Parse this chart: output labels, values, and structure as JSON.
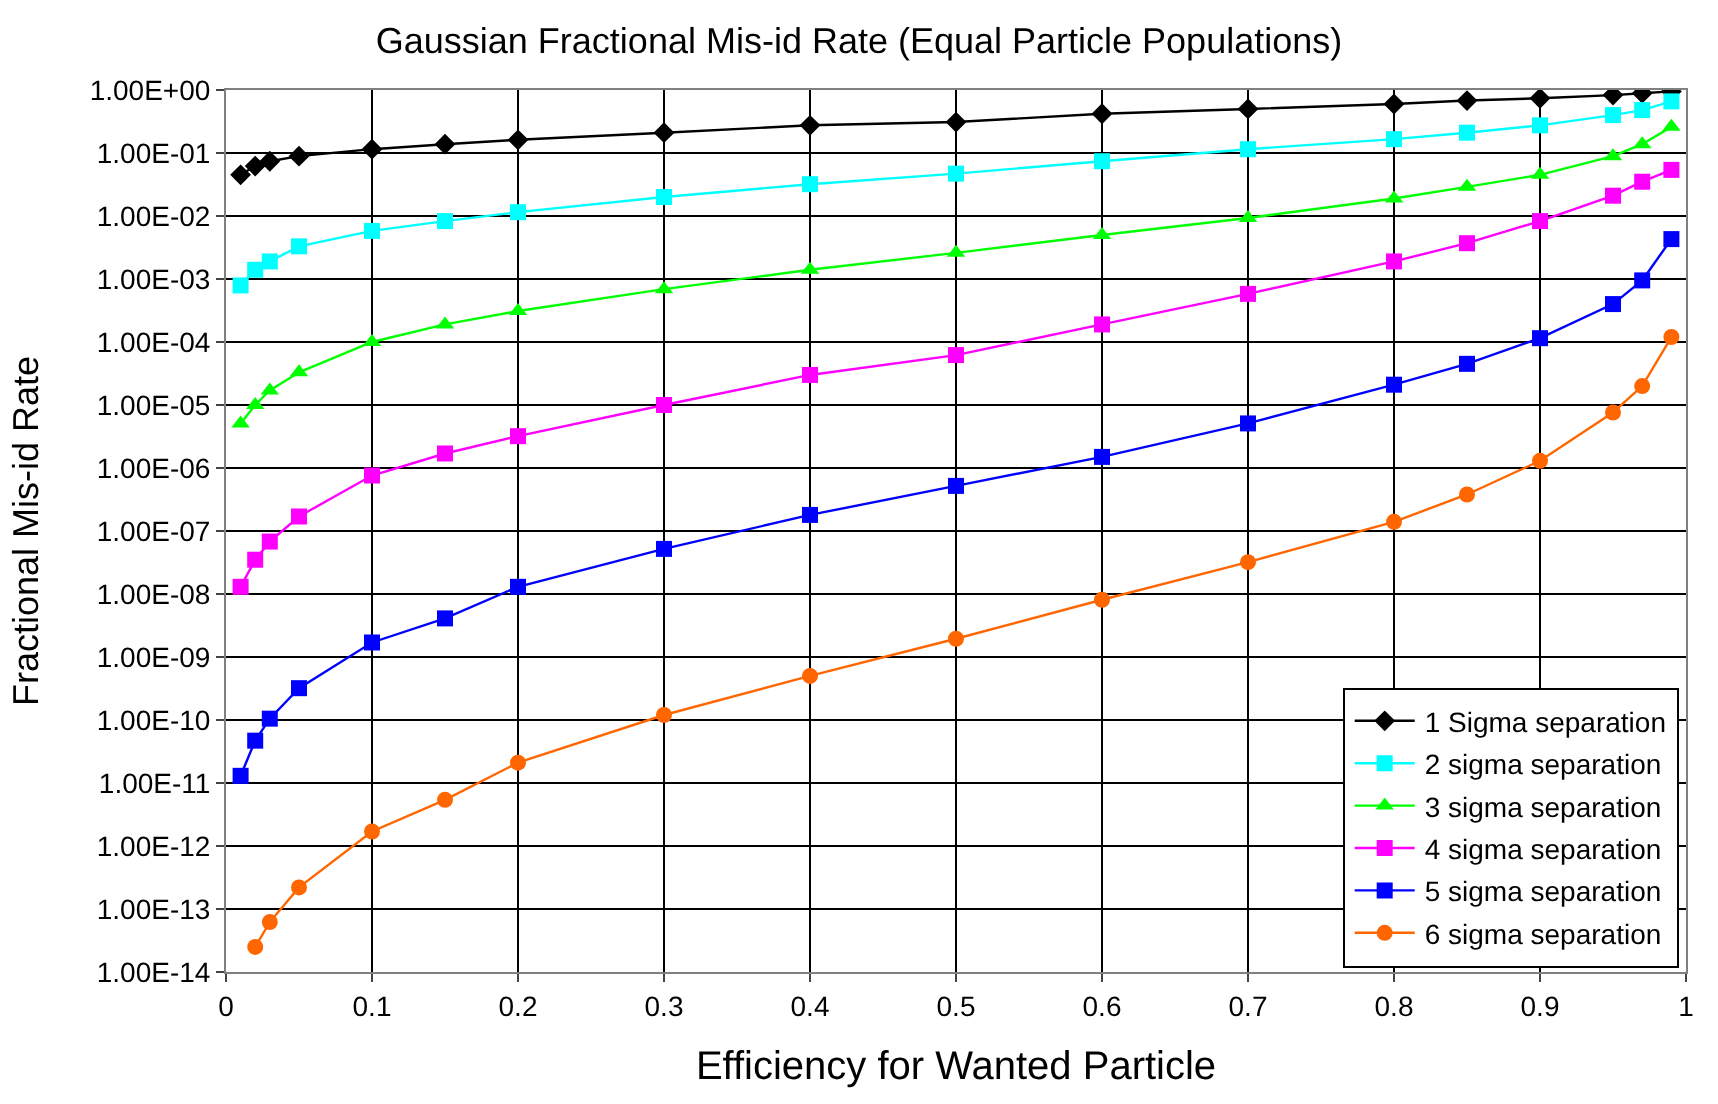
{
  "chart_data": {
    "type": "line",
    "title": "Gaussian Fractional Mis-id Rate (Equal Particle Populations)",
    "xlabel": "Efficiency for Wanted Particle",
    "ylabel": "Fractional Mis-id Rate",
    "x": [
      0.01,
      0.02,
      0.03,
      0.05,
      0.1,
      0.15,
      0.2,
      0.3,
      0.4,
      0.5,
      0.6,
      0.7,
      0.8,
      0.85,
      0.9,
      0.95,
      0.97,
      0.99
    ],
    "series": [
      {
        "name": "1 Sigma separation",
        "color": "#000000",
        "marker": "diamond",
        "values": [
          0.045,
          0.062,
          0.074,
          0.089,
          0.115,
          0.138,
          0.162,
          0.21,
          0.275,
          0.31,
          0.42,
          0.5,
          0.6,
          0.68,
          0.74,
          0.83,
          0.89,
          0.95
        ]
      },
      {
        "name": "2 sigma separation",
        "color": "#00ffff",
        "marker": "square",
        "values": [
          0.00079,
          0.0014,
          0.0019,
          0.0033,
          0.0058,
          0.0083,
          0.0115,
          0.02,
          0.032,
          0.047,
          0.074,
          0.115,
          0.166,
          0.21,
          0.275,
          0.4,
          0.48,
          0.66
        ]
      },
      {
        "name": "3 sigma separation",
        "color": "#00ff00",
        "marker": "triangle",
        "values": [
          5.1e-06,
          1e-05,
          1.7e-05,
          3.3e-05,
          0.0001,
          0.00019,
          0.00031,
          0.00069,
          0.0014,
          0.0026,
          0.005,
          0.0093,
          0.019,
          0.029,
          0.045,
          0.089,
          0.138,
          0.26
        ]
      },
      {
        "name": "4 sigma separation",
        "color": "#ff00ff",
        "marker": "square",
        "values": [
          1.3e-08,
          3.5e-08,
          6.8e-08,
          1.7e-07,
          7.6e-07,
          1.7e-06,
          3.2e-06,
          1e-05,
          3e-05,
          6.2e-05,
          0.00019,
          0.00058,
          0.0019,
          0.0037,
          0.0083,
          0.021,
          0.035,
          0.054
        ]
      },
      {
        "name": "5 sigma separation",
        "color": "#0000ff",
        "marker": "square",
        "values": [
          1.3e-11,
          4.7e-11,
          1.05e-10,
          3.2e-10,
          1.7e-09,
          4.1e-09,
          1.3e-08,
          5.2e-08,
          1.8e-07,
          5.2e-07,
          1.5e-06,
          5.1e-06,
          2.1e-05,
          4.5e-05,
          0.000115,
          0.0004,
          0.00095,
          0.0043
        ]
      },
      {
        "name": "6 sigma separation",
        "color": "#ff6600",
        "marker": "circle",
        "values": [
          null,
          2.5e-14,
          6.2e-14,
          2.2e-13,
          1.7e-12,
          5.4e-12,
          2.1e-11,
          1.2e-10,
          5e-10,
          1.95e-09,
          8.1e-09,
          3.2e-08,
          1.4e-07,
          3.8e-07,
          1.3e-06,
          7.6e-06,
          2e-05,
          0.00012
        ]
      }
    ],
    "log": "y",
    "xlim": [
      0,
      1
    ],
    "xticks": [
      0,
      0.1,
      0.2,
      0.3,
      0.4,
      0.5,
      0.6,
      0.7,
      0.8,
      0.9,
      1
    ],
    "ylim": [
      1e-14,
      1
    ],
    "yticks": [
      {
        "value": 1,
        "label": "1.00E+00"
      },
      {
        "value": 0.1,
        "label": "1.00E-01"
      },
      {
        "value": 0.01,
        "label": "1.00E-02"
      },
      {
        "value": 0.001,
        "label": "1.00E-03"
      },
      {
        "value": 0.0001,
        "label": "1.00E-04"
      },
      {
        "value": 1e-05,
        "label": "1.00E-05"
      },
      {
        "value": 1e-06,
        "label": "1.00E-06"
      },
      {
        "value": 1e-07,
        "label": "1.00E-07"
      },
      {
        "value": 1e-08,
        "label": "1.00E-08"
      },
      {
        "value": 1e-09,
        "label": "1.00E-09"
      },
      {
        "value": 1e-10,
        "label": "1.00E-10"
      },
      {
        "value": 1e-11,
        "label": "1.00E-11"
      },
      {
        "value": 1e-12,
        "label": "1.00E-12"
      },
      {
        "value": 1e-13,
        "label": "1.00E-13"
      },
      {
        "value": 1e-14,
        "label": "1.00E-14"
      }
    ],
    "grid": true,
    "legend": "bottom right",
    "line_style": "solid"
  }
}
